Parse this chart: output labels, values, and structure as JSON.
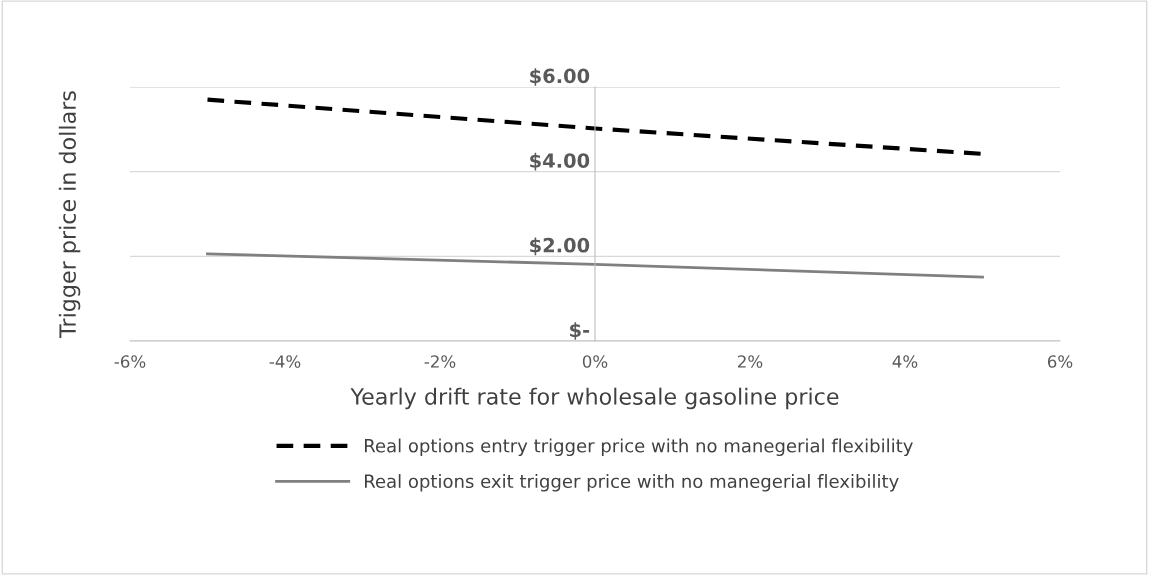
{
  "chart_data": {
    "type": "line",
    "xlabel": "Yearly drift rate for wholesale gasoline price",
    "ylabel": "Trigger price in dollars",
    "x": [
      -5,
      0,
      5
    ],
    "series": [
      {
        "name": "Real options entry trigger price with no manegerial flexibility",
        "color": "#000000",
        "line_style": "dashed",
        "values": [
          5.7,
          5.02,
          4.42
        ]
      },
      {
        "name": "Real options exit trigger price with no manegerial flexibility",
        "color": "#808080",
        "line_style": "solid",
        "values": [
          2.06,
          1.81,
          1.51
        ]
      }
    ],
    "xlim": [
      -6,
      6
    ],
    "xticks": [
      {
        "value": -6,
        "label": "-6%"
      },
      {
        "value": -4,
        "label": "-4%"
      },
      {
        "value": -2,
        "label": "-2%"
      },
      {
        "value": 0,
        "label": "0%"
      },
      {
        "value": 2,
        "label": "2%"
      },
      {
        "value": 4,
        "label": "4%"
      },
      {
        "value": 6,
        "label": "6%"
      }
    ],
    "ylim": [
      0,
      6
    ],
    "yticks": [
      {
        "value": 0,
        "label": "$-"
      },
      {
        "value": 2,
        "label": "$2.00"
      },
      {
        "value": 4,
        "label": "$4.00"
      },
      {
        "value": 6,
        "label": "$6.00"
      }
    ],
    "grid": "y",
    "legend": "bottom",
    "marker": "none"
  }
}
